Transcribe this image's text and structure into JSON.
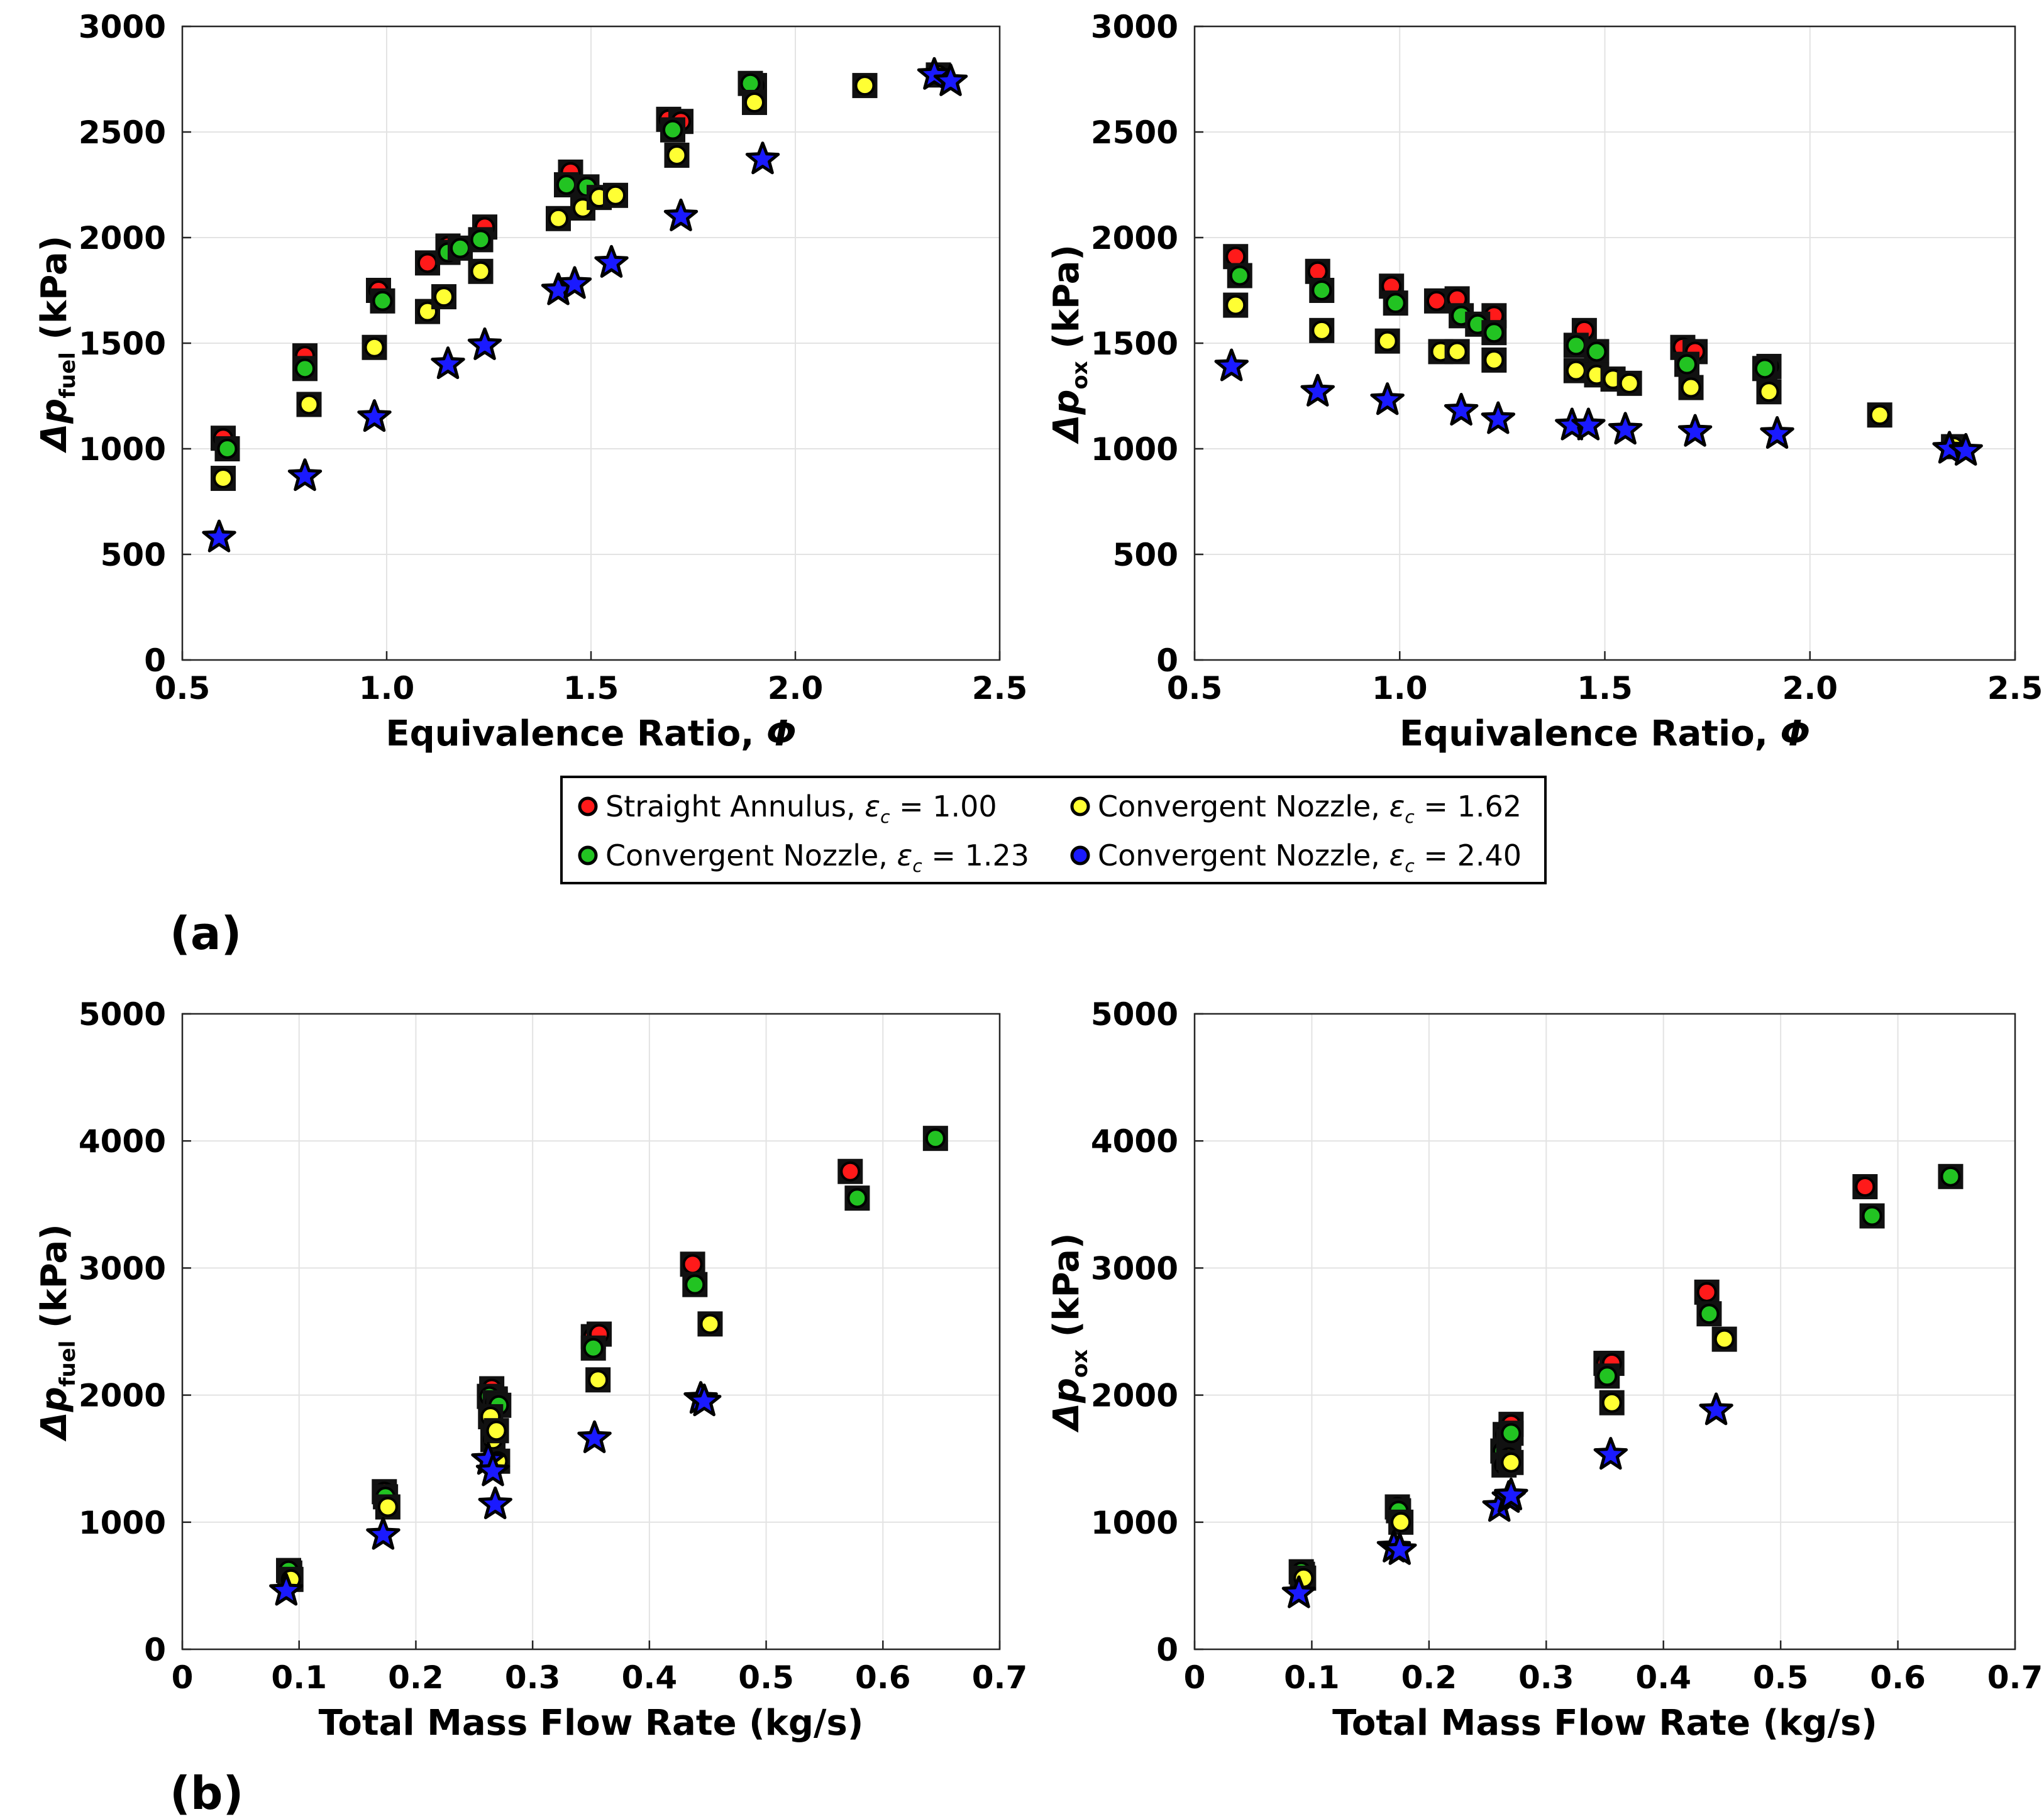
{
  "panel_labels": {
    "a": "(a)",
    "b": "(b)"
  },
  "colors": {
    "red": "#ff1a1a",
    "green": "#22c322",
    "yellow": "#ffff33",
    "blue": "#1a1aff"
  },
  "legend": [
    {
      "text": "Straight Annulus, ",
      "eps": "ε",
      "sub": "c",
      "value": " = 1.00",
      "series": "straight"
    },
    {
      "text": "Convergent Nozzle, ",
      "eps": "ε",
      "sub": "c",
      "value": " = 1.62",
      "series": "c162"
    },
    {
      "text": "Convergent Nozzle, ",
      "eps": "ε",
      "sub": "c",
      "value": " = 1.23",
      "series": "c123"
    },
    {
      "text": "Convergent Nozzle, ",
      "eps": "ε",
      "sub": "c",
      "value": " = 2.40",
      "series": "c240"
    }
  ],
  "chart_data": [
    {
      "id": "a-left",
      "type": "scatter",
      "xlabel": "Equivalence Ratio, Φ",
      "x_symbol": "Φ",
      "xlabel_main": "Equivalence Ratio, ",
      "ylabel_main": "Δp",
      "ylabel_sub": "fuel",
      "ylabel_unit": " (kPa)",
      "xlim": [
        0.5,
        2.5
      ],
      "ylim": [
        0,
        3000
      ],
      "xticks": [
        "0.5",
        "1.0",
        "1.5",
        "2.0",
        "2.5"
      ],
      "yticks": [
        "0",
        "500",
        "1000",
        "1500",
        "2000",
        "2500",
        "3000"
      ],
      "grid": true,
      "series": [
        {
          "name": "straight",
          "color": "#ff1a1a",
          "points": [
            [
              0.6,
              1050
            ],
            [
              0.8,
              1440
            ],
            [
              0.98,
              1750
            ],
            [
              1.1,
              1880
            ],
            [
              1.15,
              1960
            ],
            [
              1.24,
              2050
            ],
            [
              1.45,
              2310
            ],
            [
              1.69,
              2560
            ],
            [
              1.72,
              2550
            ],
            [
              1.9,
              2720
            ]
          ]
        },
        {
          "name": "c123",
          "color": "#22c322",
          "points": [
            [
              0.61,
              1000
            ],
            [
              0.8,
              1380
            ],
            [
              0.99,
              1700
            ],
            [
              1.15,
              1930
            ],
            [
              1.18,
              1950
            ],
            [
              1.23,
              1990
            ],
            [
              1.44,
              2250
            ],
            [
              1.49,
              2240
            ],
            [
              1.7,
              2510
            ],
            [
              1.89,
              2730
            ]
          ]
        },
        {
          "name": "c162",
          "color": "#ffff33",
          "points": [
            [
              0.6,
              860
            ],
            [
              0.81,
              1210
            ],
            [
              0.97,
              1480
            ],
            [
              1.1,
              1650
            ],
            [
              1.14,
              1720
            ],
            [
              1.23,
              1840
            ],
            [
              1.42,
              2090
            ],
            [
              1.48,
              2140
            ],
            [
              1.52,
              2190
            ],
            [
              1.56,
              2200
            ],
            [
              1.71,
              2390
            ],
            [
              1.9,
              2640
            ],
            [
              2.17,
              2720
            ],
            [
              2.35,
              2770
            ]
          ]
        },
        {
          "name": "c240",
          "color": "#1a1aff",
          "points": [
            [
              0.59,
              580
            ],
            [
              0.8,
              870
            ],
            [
              0.97,
              1150
            ],
            [
              1.15,
              1400
            ],
            [
              1.24,
              1490
            ],
            [
              1.42,
              1750
            ],
            [
              1.46,
              1780
            ],
            [
              1.55,
              1880
            ],
            [
              1.72,
              2100
            ],
            [
              1.92,
              2370
            ],
            [
              2.34,
              2770
            ],
            [
              2.38,
              2740
            ]
          ]
        }
      ]
    },
    {
      "id": "a-right",
      "type": "scatter",
      "xlabel": "Equivalence Ratio, Φ",
      "x_symbol": "Φ",
      "xlabel_main": "Equivalence Ratio, ",
      "ylabel_main": "Δp",
      "ylabel_sub": "ox",
      "ylabel_unit": " (kPa)",
      "xlim": [
        0.5,
        2.5
      ],
      "ylim": [
        0,
        3000
      ],
      "xticks": [
        "0.5",
        "1.0",
        "1.5",
        "2.0",
        "2.5"
      ],
      "yticks": [
        "0",
        "500",
        "1000",
        "1500",
        "2000",
        "2500",
        "3000"
      ],
      "grid": true,
      "series": [
        {
          "name": "straight",
          "color": "#ff1a1a",
          "points": [
            [
              0.6,
              1910
            ],
            [
              0.8,
              1840
            ],
            [
              0.98,
              1770
            ],
            [
              1.09,
              1700
            ],
            [
              1.14,
              1710
            ],
            [
              1.23,
              1630
            ],
            [
              1.45,
              1560
            ],
            [
              1.69,
              1480
            ],
            [
              1.72,
              1460
            ],
            [
              1.9,
              1390
            ]
          ]
        },
        {
          "name": "c123",
          "color": "#22c322",
          "points": [
            [
              0.61,
              1820
            ],
            [
              0.81,
              1750
            ],
            [
              0.99,
              1690
            ],
            [
              1.15,
              1630
            ],
            [
              1.19,
              1590
            ],
            [
              1.23,
              1550
            ],
            [
              1.43,
              1490
            ],
            [
              1.48,
              1460
            ],
            [
              1.7,
              1400
            ],
            [
              1.89,
              1380
            ]
          ]
        },
        {
          "name": "c162",
          "color": "#ffff33",
          "points": [
            [
              0.6,
              1680
            ],
            [
              0.81,
              1560
            ],
            [
              0.97,
              1510
            ],
            [
              1.1,
              1460
            ],
            [
              1.14,
              1460
            ],
            [
              1.23,
              1420
            ],
            [
              1.43,
              1370
            ],
            [
              1.48,
              1350
            ],
            [
              1.52,
              1330
            ],
            [
              1.56,
              1310
            ],
            [
              1.71,
              1290
            ],
            [
              1.9,
              1270
            ],
            [
              2.17,
              1160
            ],
            [
              2.35,
              1010
            ]
          ]
        },
        {
          "name": "c240",
          "color": "#1a1aff",
          "points": [
            [
              0.59,
              1390
            ],
            [
              0.8,
              1270
            ],
            [
              0.97,
              1230
            ],
            [
              1.15,
              1180
            ],
            [
              1.24,
              1140
            ],
            [
              1.42,
              1110
            ],
            [
              1.46,
              1110
            ],
            [
              1.55,
              1090
            ],
            [
              1.72,
              1080
            ],
            [
              1.92,
              1070
            ],
            [
              2.34,
              1000
            ],
            [
              2.38,
              990
            ]
          ]
        }
      ]
    },
    {
      "id": "b-left",
      "type": "scatter",
      "xlabel": "Total Mass Flow Rate (kg/s)",
      "xlabel_main": "Total Mass Flow Rate (kg/s)",
      "x_symbol": "",
      "ylabel_main": "Δp",
      "ylabel_sub": "fuel",
      "ylabel_unit": " (kPa)",
      "xlim": [
        0,
        0.7
      ],
      "ylim": [
        0,
        5000
      ],
      "xticks": [
        "0",
        "0.1",
        "0.2",
        "0.3",
        "0.4",
        "0.5",
        "0.6",
        "0.7"
      ],
      "yticks": [
        "0",
        "1000",
        "2000",
        "3000",
        "4000",
        "5000"
      ],
      "grid": true,
      "series": [
        {
          "name": "straight",
          "color": "#ff1a1a",
          "points": [
            [
              0.092,
              600
            ],
            [
              0.173,
              1240
            ],
            [
              0.265,
              2050
            ],
            [
              0.268,
              1970
            ],
            [
              0.352,
              2460
            ],
            [
              0.357,
              2480
            ],
            [
              0.437,
              3030
            ],
            [
              0.572,
              3760
            ]
          ]
        },
        {
          "name": "c123",
          "color": "#22c322",
          "points": [
            [
              0.091,
              620
            ],
            [
              0.174,
              1200
            ],
            [
              0.263,
              1990
            ],
            [
              0.268,
              1940
            ],
            [
              0.271,
              1920
            ],
            [
              0.352,
              2370
            ],
            [
              0.439,
              2870
            ],
            [
              0.578,
              3550
            ],
            [
              0.645,
              4020
            ]
          ]
        },
        {
          "name": "c162",
          "color": "#ffff33",
          "points": [
            [
              0.093,
              550
            ],
            [
              0.176,
              1120
            ],
            [
              0.264,
              1830
            ],
            [
              0.266,
              1650
            ],
            [
              0.269,
              1720
            ],
            [
              0.27,
              1480
            ],
            [
              0.356,
              2120
            ],
            [
              0.452,
              2560
            ]
          ]
        },
        {
          "name": "c240",
          "color": "#1a1aff",
          "points": [
            [
              0.089,
              460
            ],
            [
              0.172,
              900
            ],
            [
              0.262,
              1490
            ],
            [
              0.266,
              1400
            ],
            [
              0.268,
              1140
            ],
            [
              0.353,
              1660
            ],
            [
              0.444,
              1970
            ],
            [
              0.447,
              1950
            ]
          ]
        }
      ]
    },
    {
      "id": "b-right",
      "type": "scatter",
      "xlabel": "Total Mass Flow Rate (kg/s)",
      "xlabel_main": "Total Mass Flow Rate (kg/s)",
      "x_symbol": "",
      "ylabel_main": "Δp",
      "ylabel_sub": "ox",
      "ylabel_unit": " (kPa)",
      "xlim": [
        0,
        0.7
      ],
      "ylim": [
        0,
        5000
      ],
      "xticks": [
        "0",
        "0.1",
        "0.2",
        "0.3",
        "0.4",
        "0.5",
        "0.6",
        "0.7"
      ],
      "yticks": [
        "0",
        "1000",
        "2000",
        "3000",
        "4000",
        "5000"
      ],
      "grid": true,
      "series": [
        {
          "name": "straight",
          "color": "#ff1a1a",
          "points": [
            [
              0.092,
              590
            ],
            [
              0.173,
              1120
            ],
            [
              0.265,
              1690
            ],
            [
              0.27,
              1770
            ],
            [
              0.351,
              2250
            ],
            [
              0.356,
              2250
            ],
            [
              0.437,
              2810
            ],
            [
              0.572,
              3640
            ]
          ]
        },
        {
          "name": "c123",
          "color": "#22c322",
          "points": [
            [
              0.091,
              610
            ],
            [
              0.174,
              1090
            ],
            [
              0.263,
              1560
            ],
            [
              0.268,
              1640
            ],
            [
              0.27,
              1700
            ],
            [
              0.352,
              2150
            ],
            [
              0.439,
              2640
            ],
            [
              0.578,
              3410
            ],
            [
              0.645,
              3720
            ]
          ]
        },
        {
          "name": "c162",
          "color": "#ffff33",
          "points": [
            [
              0.093,
              560
            ],
            [
              0.176,
              1000
            ],
            [
              0.264,
              1450
            ],
            [
              0.268,
              1510
            ],
            [
              0.27,
              1470
            ],
            [
              0.356,
              1940
            ],
            [
              0.452,
              2440
            ]
          ]
        },
        {
          "name": "c240",
          "color": "#1a1aff",
          "points": [
            [
              0.089,
              440
            ],
            [
              0.17,
              800
            ],
            [
              0.175,
              780
            ],
            [
              0.26,
              1120
            ],
            [
              0.268,
              1190
            ],
            [
              0.27,
              1210
            ],
            [
              0.355,
              1530
            ],
            [
              0.445,
              1880
            ]
          ]
        }
      ]
    }
  ]
}
